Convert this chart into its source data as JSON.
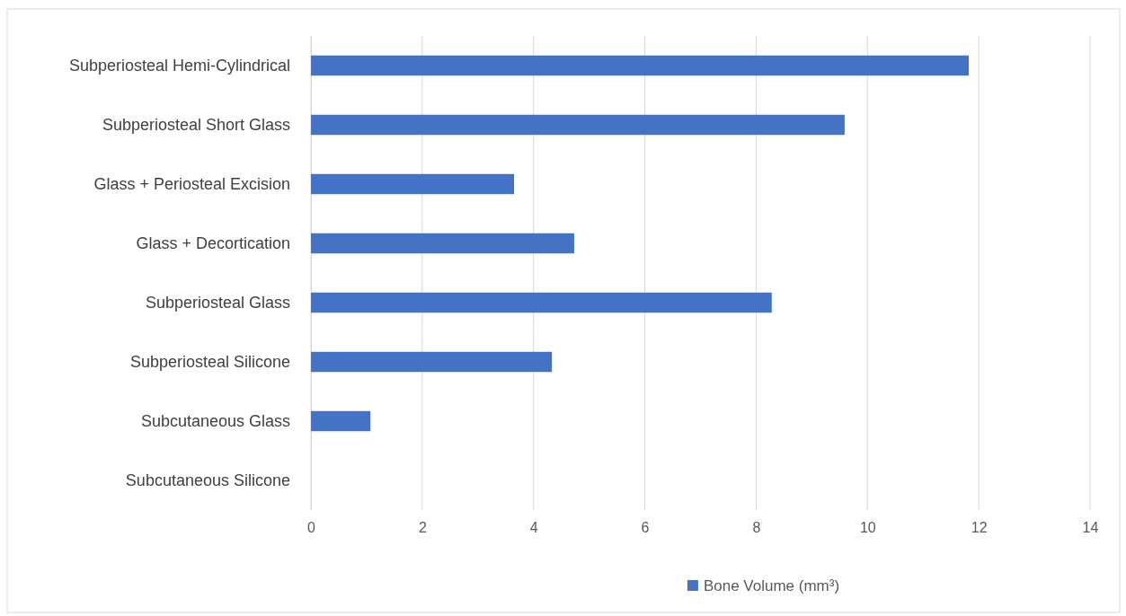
{
  "chart_data": {
    "type": "bar",
    "orientation": "horizontal",
    "categories": [
      "Subperiosteal Hemi-Cylindrical",
      "Subperiosteal Short Glass",
      "Glass + Periosteal Excision",
      "Glass + Decortication",
      "Subperiosteal Glass",
      "Subperiosteal Silicone",
      "Subcutaneous Glass",
      "Subcutaneous Silicone"
    ],
    "series": [
      {
        "name": "Bone Volume (mm³)",
        "color": "#4472c4",
        "values": [
          11.82,
          9.59,
          3.65,
          4.73,
          8.28,
          4.33,
          1.07,
          0
        ]
      }
    ],
    "xlim": [
      0,
      14
    ],
    "xticks": [
      0,
      2,
      4,
      6,
      8,
      10,
      12,
      14
    ],
    "grid": "x",
    "legend": "bottom"
  }
}
